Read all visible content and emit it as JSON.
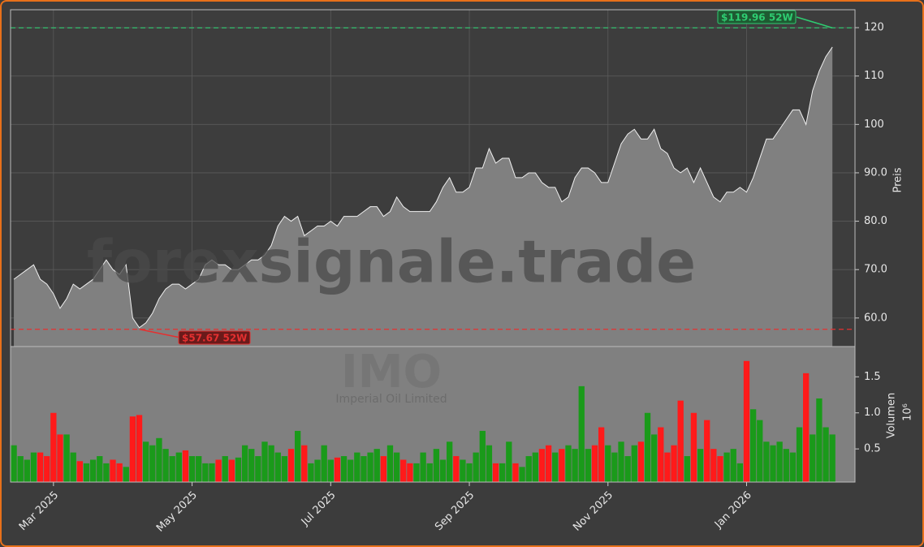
{
  "chart_data": [
    {
      "type": "area",
      "title": "IMO",
      "subtitle": "Imperial Oil Limited",
      "watermark": "forexsignale.trade",
      "y_label": "Preis",
      "line_color": "#f0f0f0",
      "fill_color": "#808080",
      "grid": true,
      "categories": [
        null,
        null,
        null,
        null,
        null,
        null,
        "Mar 2025",
        null,
        null,
        null,
        null,
        null,
        null,
        null,
        null,
        null,
        null,
        null,
        null,
        null,
        null,
        null,
        null,
        null,
        null,
        null,
        null,
        "May 2025",
        null,
        null,
        null,
        null,
        null,
        null,
        null,
        null,
        null,
        null,
        null,
        null,
        null,
        null,
        null,
        null,
        null,
        null,
        null,
        null,
        "Jul 2025",
        null,
        null,
        null,
        null,
        null,
        null,
        null,
        null,
        null,
        null,
        null,
        null,
        null,
        null,
        null,
        null,
        null,
        null,
        null,
        null,
        "Sep 2025",
        null,
        null,
        null,
        null,
        null,
        null,
        null,
        null,
        null,
        null,
        null,
        null,
        null,
        null,
        null,
        null,
        null,
        null,
        null,
        null,
        "Nov 2025",
        null,
        null,
        null,
        null,
        null,
        null,
        null,
        null,
        null,
        null,
        null,
        null,
        null,
        null,
        null,
        null,
        null,
        null,
        null,
        null,
        "Jan 2026",
        null,
        null,
        null,
        null,
        null,
        null,
        null,
        null,
        null,
        null,
        null,
        null,
        null
      ],
      "values": [
        68,
        69,
        70,
        71,
        68,
        67,
        65,
        62,
        64,
        67,
        66,
        67,
        68,
        70,
        72,
        70,
        69,
        71,
        60,
        58,
        59,
        61,
        64,
        66,
        67,
        67,
        66,
        67,
        68,
        71,
        72,
        71,
        71,
        70,
        70,
        71,
        72,
        72,
        73,
        75,
        79,
        81,
        80,
        81,
        77,
        78,
        79,
        79,
        80,
        79,
        81,
        81,
        81,
        82,
        83,
        83,
        81,
        82,
        85,
        83,
        82,
        82,
        82,
        82,
        84,
        87,
        89,
        86,
        86,
        87,
        91,
        91,
        95,
        92,
        93,
        93,
        89,
        89,
        90,
        90,
        88,
        87,
        87,
        84,
        85,
        89,
        91,
        91,
        90,
        88,
        88,
        92,
        96,
        98,
        99,
        97,
        97,
        99,
        95,
        94,
        91,
        90,
        91,
        88,
        91,
        88,
        85,
        84,
        86,
        86,
        87,
        86,
        89,
        93,
        97,
        97,
        99,
        101,
        103,
        103,
        100,
        107,
        111,
        114,
        116
      ],
      "ylim": [
        54.1,
        123.7
      ],
      "yticks": [
        {
          "value": 60,
          "label": "60.0"
        },
        {
          "value": 70,
          "label": "70.0"
        },
        {
          "value": 80,
          "label": "80.0"
        },
        {
          "value": 90,
          "label": "90.0"
        },
        100,
        110,
        120
      ],
      "annotations": [
        {
          "value": 119.96,
          "label": "$119.96 52W",
          "color": "#2ecc71"
        },
        {
          "value": 57.67,
          "label": "$57.67 52W",
          "color": "#e53030"
        }
      ]
    },
    {
      "type": "bar",
      "y_label": "Volumen",
      "y_unit": "10⁶",
      "up_color": "#1a9a1a",
      "down_color": "#ff1a1a",
      "values": [
        0.55,
        0.4,
        0.35,
        0.45,
        0.45,
        0.4,
        1.0,
        0.7,
        0.7,
        0.45,
        0.33,
        0.3,
        0.35,
        0.4,
        0.3,
        0.35,
        0.3,
        0.25,
        0.95,
        0.97,
        0.6,
        0.55,
        0.65,
        0.5,
        0.4,
        0.45,
        0.48,
        0.4,
        0.4,
        0.3,
        0.3,
        0.35,
        0.4,
        0.35,
        0.38,
        0.55,
        0.5,
        0.4,
        0.6,
        0.55,
        0.45,
        0.4,
        0.5,
        0.75,
        0.55,
        0.3,
        0.35,
        0.55,
        0.35,
        0.38,
        0.4,
        0.35,
        0.45,
        0.4,
        0.45,
        0.5,
        0.4,
        0.55,
        0.45,
        0.35,
        0.3,
        0.3,
        0.45,
        0.3,
        0.5,
        0.35,
        0.6,
        0.4,
        0.35,
        0.3,
        0.45,
        0.75,
        0.55,
        0.3,
        0.3,
        0.6,
        0.3,
        0.25,
        0.4,
        0.45,
        0.5,
        0.55,
        0.45,
        0.5,
        0.55,
        0.5,
        1.37,
        0.5,
        0.55,
        0.8,
        0.55,
        0.45,
        0.6,
        0.4,
        0.55,
        0.6,
        1.0,
        0.7,
        0.8,
        0.45,
        0.55,
        1.17,
        0.4,
        1.0,
        0.5,
        0.9,
        0.5,
        0.4,
        0.45,
        0.5,
        0.3,
        1.72,
        1.05,
        0.9,
        0.6,
        0.55,
        0.6,
        0.5,
        0.45,
        0.8,
        1.55,
        0.7,
        1.2,
        0.8,
        0.7
      ],
      "ylim": [
        0.04,
        1.92
      ],
      "yticks": [
        0.5,
        {
          "value": 1,
          "label": "1.0"
        },
        1.5
      ]
    }
  ]
}
